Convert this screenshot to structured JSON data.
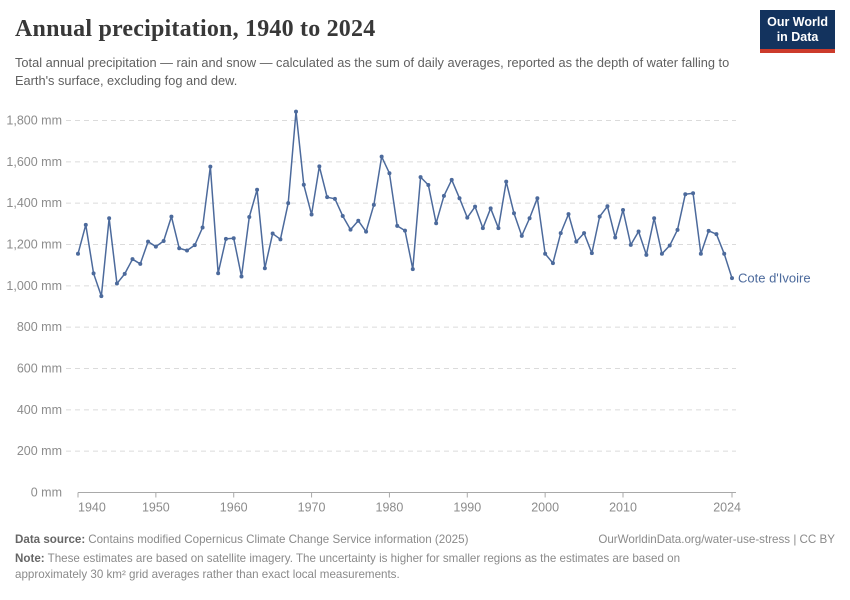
{
  "header": {
    "title": "Annual precipitation, 1940 to 2024",
    "subtitle": "Total annual precipitation — rain and snow — calculated as the sum of daily averages, reported as the depth of water falling to Earth's surface, excluding fog and dew.",
    "logo": {
      "line1": "Our World",
      "line2": "in Data"
    }
  },
  "chart_data": {
    "type": "line",
    "title": "Annual precipitation, 1940 to 2024",
    "xlabel": "",
    "ylabel": "",
    "xlim": [
      1940,
      2024
    ],
    "ylim": [
      0,
      1800
    ],
    "x_ticks": [
      1940,
      1950,
      1960,
      1970,
      1980,
      1990,
      2000,
      2010,
      2024
    ],
    "y_ticks": [
      0,
      200,
      400,
      600,
      800,
      1000,
      1200,
      1400,
      1600,
      1800
    ],
    "y_tick_suffix": " mm",
    "grid": "dashed-horizontal",
    "legend_position": "end-of-line-label",
    "series": [
      {
        "name": "Cote d'Ivoire",
        "color": "#4C6A9C",
        "x": [
          1940,
          1941,
          1942,
          1943,
          1944,
          1945,
          1946,
          1947,
          1948,
          1949,
          1950,
          1951,
          1952,
          1953,
          1954,
          1955,
          1956,
          1957,
          1958,
          1959,
          1960,
          1961,
          1962,
          1963,
          1964,
          1965,
          1966,
          1967,
          1968,
          1969,
          1970,
          1971,
          1972,
          1973,
          1974,
          1975,
          1976,
          1977,
          1978,
          1979,
          1980,
          1981,
          1982,
          1983,
          1984,
          1985,
          1986,
          1987,
          1988,
          1989,
          1990,
          1991,
          1992,
          1993,
          1994,
          1995,
          1996,
          1997,
          1998,
          1999,
          2000,
          2001,
          2002,
          2003,
          2004,
          2005,
          2006,
          2007,
          2008,
          2009,
          2010,
          2011,
          2012,
          2013,
          2014,
          2015,
          2016,
          2017,
          2018,
          2019,
          2020,
          2021,
          2022,
          2023,
          2024
        ],
        "values": [
          1155,
          1295,
          1060,
          950,
          1327,
          1011,
          1058,
          1129,
          1106,
          1214,
          1190,
          1217,
          1335,
          1182,
          1171,
          1197,
          1282,
          1577,
          1061,
          1227,
          1230,
          1045,
          1333,
          1465,
          1085,
          1253,
          1225,
          1400,
          1843,
          1489,
          1345,
          1578,
          1429,
          1421,
          1338,
          1272,
          1315,
          1262,
          1392,
          1625,
          1545,
          1290,
          1267,
          1081,
          1526,
          1488,
          1303,
          1435,
          1513,
          1424,
          1330,
          1383,
          1279,
          1375,
          1279,
          1504,
          1351,
          1242,
          1327,
          1424,
          1155,
          1110,
          1255,
          1347,
          1214,
          1255,
          1158,
          1335,
          1385,
          1234,
          1367,
          1198,
          1263,
          1150,
          1327,
          1155,
          1195,
          1271,
          1443,
          1448,
          1155,
          1266,
          1250,
          1155,
          1037
        ]
      }
    ]
  },
  "footer": {
    "datasource_label": "Data source:",
    "datasource_text": "Contains modified Copernicus Climate Change Service information (2025)",
    "link_text": "OurWorldinData.org/water-use-stress | CC BY",
    "note_label": "Note:",
    "note_text": "These estimates are based on satellite imagery. The uncertainty is higher for smaller regions as the estimates are based on approximately 30 km² grid averages rather than exact local measurements."
  },
  "colors": {
    "line": "#4C6A9C",
    "grid": "#DBDBDB",
    "axis_line": "#A9A9A9",
    "axis_text": "#8C8C8C",
    "logo_bg": "#13335E",
    "logo_red": "#CC3B2B"
  }
}
